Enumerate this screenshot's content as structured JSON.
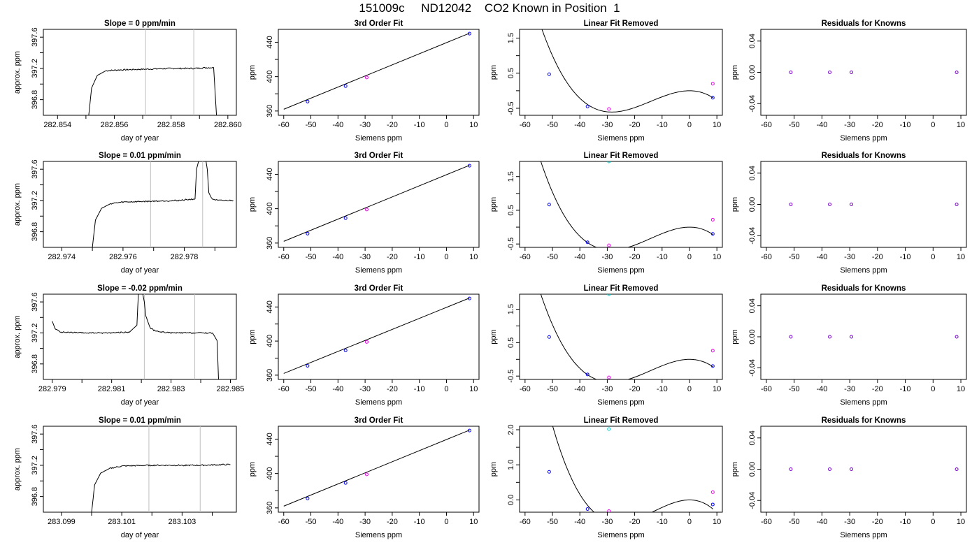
{
  "figure": {
    "title": "151009c     ND12042    CO2 Known in Position  1"
  },
  "colors": {
    "line": "#000000",
    "vline": "#bebebe",
    "point_known": "#0000ff",
    "point_magenta": "#ee00ee",
    "point_cyan": "#00cccc",
    "point_purple": "#7a00cc"
  },
  "chart_data": [
    {
      "type": "line",
      "panel": "time-series",
      "row": 1,
      "title": "Slope =  0  ppm/min",
      "xlabel": "day of year",
      "ylabel": "approx. ppm",
      "xlim": [
        282.8535,
        282.8603
      ],
      "ylim": [
        396.6,
        397.7
      ],
      "xticks": [
        282.854,
        282.855,
        282.856,
        282.857,
        282.858,
        282.859,
        282.86
      ],
      "xtick_labels": [
        "282.854",
        "",
        "282.856",
        "",
        "282.858",
        "",
        "282.860"
      ],
      "yticks": [
        396.8,
        397.0,
        397.2,
        397.4,
        397.6
      ],
      "ytick_labels": [
        "396.8",
        "",
        "397.2",
        "",
        "397.6"
      ],
      "vlines": [
        282.8571,
        282.8588
      ],
      "x": [
        282.8551,
        282.8552,
        282.8554,
        282.8557,
        282.8561,
        282.8571,
        282.858,
        282.8588,
        282.8593,
        282.8595,
        282.8596
      ],
      "y": [
        396.6,
        396.95,
        397.11,
        397.17,
        397.18,
        397.19,
        397.2,
        397.2,
        397.21,
        397.21,
        396.6
      ],
      "noise": 0.008
    },
    {
      "type": "scatter",
      "panel": "third-order-fit",
      "row": 1,
      "title": "3rd Order Fit",
      "xlabel": "Siemens ppm",
      "ylabel": "ppm",
      "xlim": [
        -62,
        12
      ],
      "ylim": [
        355,
        455
      ],
      "xticks": [
        -60,
        -50,
        -40,
        -30,
        -20,
        -10,
        0,
        10
      ],
      "yticks": [
        360,
        380,
        400,
        420,
        440
      ],
      "ytick_labels": [
        "360",
        "",
        "400",
        "",
        "440"
      ],
      "fit_line": {
        "x": [
          -60,
          8.5
        ],
        "y": [
          362,
          450.5
        ]
      },
      "points": [
        {
          "x": -51.2,
          "y": 371,
          "color": "point_known"
        },
        {
          "x": -37.2,
          "y": 389,
          "color": "point_known"
        },
        {
          "x": -29.4,
          "y": 399,
          "color": "point_magenta"
        },
        {
          "x": 8.5,
          "y": 450,
          "color": "point_known"
        }
      ]
    },
    {
      "type": "scatter",
      "panel": "linear-fit-removed",
      "row": 1,
      "title": "Linear Fit Removed",
      "xlabel": "Siemens ppm",
      "ylabel": "ppm",
      "xlim": [
        -62,
        12
      ],
      "ylim": [
        -0.7,
        1.75
      ],
      "xticks": [
        -60,
        -50,
        -40,
        -30,
        -20,
        -10,
        0,
        10
      ],
      "yticks": [
        -0.5,
        0.0,
        0.5,
        1.0,
        1.5
      ],
      "ytick_labels": [
        "-0.5",
        "",
        "0.5",
        "",
        "1.5"
      ],
      "curve": {
        "x_range": [
          -60,
          8.6
        ],
        "coeff": [
          0,
          0,
          -0.00227,
          -5.34e-05
        ]
      },
      "points": [
        {
          "x": -51.2,
          "y": 0.47,
          "color": "point_known"
        },
        {
          "x": -37.2,
          "y": -0.45,
          "color": "point_known"
        },
        {
          "x": -29.4,
          "y": -0.52,
          "color": "point_magenta"
        },
        {
          "x": 8.5,
          "y": -0.2,
          "color": "point_known"
        },
        {
          "x": 8.5,
          "y": 0.2,
          "color": "point_magenta"
        }
      ]
    },
    {
      "type": "scatter",
      "panel": "residuals",
      "row": 1,
      "title": "Residuals for Knowns",
      "xlabel": "Siemens ppm",
      "ylabel": "ppm",
      "xlim": [
        -62,
        12
      ],
      "ylim": [
        -0.055,
        0.055
      ],
      "xticks": [
        -60,
        -50,
        -40,
        -30,
        -20,
        -10,
        0,
        10
      ],
      "yticks": [
        -0.04,
        0.0,
        0.04
      ],
      "ytick_labels": [
        "-0.04",
        "0.00",
        "0.04"
      ],
      "points": [
        {
          "x": -51.2,
          "y": 0,
          "color": "point_purple"
        },
        {
          "x": -37.2,
          "y": 0,
          "color": "point_purple"
        },
        {
          "x": -29.4,
          "y": 0,
          "color": "point_purple"
        },
        {
          "x": 8.5,
          "y": 0,
          "color": "point_purple"
        }
      ]
    },
    {
      "type": "line",
      "panel": "time-series",
      "row": 2,
      "title": "Slope =  0.01  ppm/min",
      "xlabel": "day of year",
      "ylabel": "approx. ppm",
      "xlim": [
        282.9734,
        282.9797
      ],
      "ylim": [
        396.6,
        397.7
      ],
      "xticks": [
        282.974,
        282.975,
        282.976,
        282.977,
        282.978,
        282.979
      ],
      "xtick_labels": [
        "282.974",
        "",
        "282.976",
        "",
        "282.978",
        ""
      ],
      "yticks": [
        396.8,
        397.0,
        397.2,
        397.4,
        397.6
      ],
      "ytick_labels": [
        "396.8",
        "",
        "397.2",
        "",
        "397.6"
      ],
      "vlines": [
        282.9769,
        282.9786
      ],
      "x": [
        282.975,
        282.9751,
        282.9753,
        282.9756,
        282.976,
        282.9769,
        282.9778,
        282.97835,
        282.9784,
        282.9785,
        282.97865,
        282.97875,
        282.9788,
        282.9789,
        282.9791,
        282.9796
      ],
      "y": [
        396.6,
        396.95,
        397.1,
        397.16,
        397.18,
        397.19,
        397.2,
        397.22,
        397.6,
        397.75,
        397.85,
        397.6,
        397.3,
        397.22,
        397.2,
        397.2
      ],
      "noise": 0.008
    },
    {
      "type": "scatter",
      "panel": "third-order-fit",
      "row": 2,
      "title": "3rd Order Fit",
      "xlabel": "Siemens ppm",
      "ylabel": "ppm",
      "xlim": [
        -62,
        12
      ],
      "ylim": [
        355,
        455
      ],
      "xticks": [
        -60,
        -50,
        -40,
        -30,
        -20,
        -10,
        0,
        10
      ],
      "yticks": [
        360,
        380,
        400,
        420,
        440
      ],
      "ytick_labels": [
        "360",
        "",
        "400",
        "",
        "440"
      ],
      "fit_line": {
        "x": [
          -60,
          8.5
        ],
        "y": [
          362,
          450.5
        ]
      },
      "points": [
        {
          "x": -51.2,
          "y": 371,
          "color": "point_known"
        },
        {
          "x": -37.2,
          "y": 389,
          "color": "point_known"
        },
        {
          "x": -29.4,
          "y": 399,
          "color": "point_magenta"
        },
        {
          "x": 8.5,
          "y": 450,
          "color": "point_known"
        }
      ]
    },
    {
      "type": "scatter",
      "panel": "linear-fit-removed",
      "row": 2,
      "title": "Linear Fit Removed",
      "xlabel": "Siemens ppm",
      "ylabel": "ppm",
      "xlim": [
        -62,
        12
      ],
      "ylim": [
        -0.6,
        1.95
      ],
      "xticks": [
        -60,
        -50,
        -40,
        -30,
        -20,
        -10,
        0,
        10
      ],
      "yticks": [
        -0.5,
        0.0,
        0.5,
        1.0,
        1.5
      ],
      "ytick_labels": [
        "-0.5",
        "",
        "0.5",
        "",
        "1.5"
      ],
      "curve": {
        "x_range": [
          -60,
          8.6
        ],
        "coeff": [
          0,
          0,
          -0.0025,
          -5.83e-05
        ]
      },
      "points": [
        {
          "x": -51.2,
          "y": 0.67,
          "color": "point_known"
        },
        {
          "x": -37.2,
          "y": -0.45,
          "color": "point_known"
        },
        {
          "x": -29.4,
          "y": -0.54,
          "color": "point_magenta"
        },
        {
          "x": 8.5,
          "y": -0.2,
          "color": "point_known"
        },
        {
          "x": 8.5,
          "y": 0.22,
          "color": "point_magenta"
        },
        {
          "x": -29.4,
          "y": 1.95,
          "color": "point_cyan"
        }
      ]
    },
    {
      "type": "scatter",
      "panel": "residuals",
      "row": 2,
      "title": "Residuals for Knowns",
      "xlabel": "Siemens ppm",
      "ylabel": "ppm",
      "xlim": [
        -62,
        12
      ],
      "ylim": [
        -0.055,
        0.055
      ],
      "xticks": [
        -60,
        -50,
        -40,
        -30,
        -20,
        -10,
        0,
        10
      ],
      "yticks": [
        -0.04,
        0.0,
        0.04
      ],
      "ytick_labels": [
        "-0.04",
        "0.00",
        "0.04"
      ],
      "points": [
        {
          "x": -51.2,
          "y": 0,
          "color": "point_purple"
        },
        {
          "x": -37.2,
          "y": 0,
          "color": "point_purple"
        },
        {
          "x": -29.4,
          "y": 0,
          "color": "point_purple"
        },
        {
          "x": 8.5,
          "y": 0,
          "color": "point_purple"
        }
      ]
    },
    {
      "type": "line",
      "panel": "time-series",
      "row": 3,
      "title": "Slope =  -0.02  ppm/min",
      "xlabel": "day of year",
      "ylabel": "approx. ppm",
      "xlim": [
        282.9787,
        282.9852
      ],
      "ylim": [
        396.6,
        397.7
      ],
      "xticks": [
        282.979,
        282.98,
        282.981,
        282.982,
        282.983,
        282.984,
        282.985
      ],
      "xtick_labels": [
        "282.979",
        "",
        "282.981",
        "",
        "282.983",
        "",
        "282.985"
      ],
      "yticks": [
        396.8,
        397.0,
        397.2,
        397.4,
        397.6
      ],
      "ytick_labels": [
        "396.8",
        "",
        "397.2",
        "",
        "397.6"
      ],
      "vlines": [
        282.9821,
        282.9838
      ],
      "x": [
        282.979,
        282.9791,
        282.9793,
        282.98,
        282.9808,
        282.9816,
        282.98185,
        282.9819,
        282.982,
        282.9821,
        282.98215,
        282.9823,
        282.9825,
        282.983,
        282.9838,
        282.9844,
        282.98455,
        282.9846
      ],
      "y": [
        397.35,
        397.25,
        397.21,
        397.2,
        397.2,
        397.21,
        397.3,
        397.7,
        397.8,
        397.6,
        397.42,
        397.26,
        397.22,
        397.2,
        397.2,
        397.2,
        397.1,
        396.6
      ],
      "noise": 0.008
    },
    {
      "type": "scatter",
      "panel": "third-order-fit",
      "row": 3,
      "title": "3rd Order Fit",
      "xlabel": "Siemens ppm",
      "ylabel": "ppm",
      "xlim": [
        -62,
        12
      ],
      "ylim": [
        355,
        455
      ],
      "xticks": [
        -60,
        -50,
        -40,
        -30,
        -20,
        -10,
        0,
        10
      ],
      "yticks": [
        360,
        380,
        400,
        420,
        440
      ],
      "ytick_labels": [
        "360",
        "",
        "400",
        "",
        "440"
      ],
      "fit_line": {
        "x": [
          -60,
          8.5
        ],
        "y": [
          362,
          450.5
        ]
      },
      "points": [
        {
          "x": -51.2,
          "y": 371,
          "color": "point_known"
        },
        {
          "x": -37.2,
          "y": 389,
          "color": "point_known"
        },
        {
          "x": -29.4,
          "y": 399,
          "color": "point_magenta"
        },
        {
          "x": 8.5,
          "y": 450,
          "color": "point_known"
        }
      ]
    },
    {
      "type": "scatter",
      "panel": "linear-fit-removed",
      "row": 3,
      "title": "Linear Fit Removed",
      "xlabel": "Siemens ppm",
      "ylabel": "ppm",
      "xlim": [
        -62,
        12
      ],
      "ylim": [
        -0.6,
        1.95
      ],
      "xticks": [
        -60,
        -50,
        -40,
        -30,
        -20,
        -10,
        0,
        10
      ],
      "yticks": [
        -0.5,
        0.0,
        0.5,
        1.0,
        1.5
      ],
      "ytick_labels": [
        "-0.5",
        "",
        "0.5",
        "",
        "1.5"
      ],
      "curve": {
        "x_range": [
          -60,
          8.6
        ],
        "coeff": [
          0,
          0,
          -0.0025,
          -5.83e-05
        ]
      },
      "points": [
        {
          "x": -51.2,
          "y": 0.67,
          "color": "point_known"
        },
        {
          "x": -37.2,
          "y": -0.45,
          "color": "point_known"
        },
        {
          "x": -29.4,
          "y": -0.54,
          "color": "point_magenta"
        },
        {
          "x": 8.5,
          "y": -0.2,
          "color": "point_known"
        },
        {
          "x": 8.5,
          "y": 0.26,
          "color": "point_magenta"
        },
        {
          "x": -29.4,
          "y": 1.95,
          "color": "point_cyan"
        }
      ]
    },
    {
      "type": "scatter",
      "panel": "residuals",
      "row": 3,
      "title": "Residuals for Knowns",
      "xlabel": "Siemens ppm",
      "ylabel": "ppm",
      "xlim": [
        -62,
        12
      ],
      "ylim": [
        -0.055,
        0.055
      ],
      "xticks": [
        -60,
        -50,
        -40,
        -30,
        -20,
        -10,
        0,
        10
      ],
      "yticks": [
        -0.04,
        0.0,
        0.04
      ],
      "ytick_labels": [
        "-0.04",
        "0.00",
        "0.04"
      ],
      "points": [
        {
          "x": -51.2,
          "y": 0,
          "color": "point_purple"
        },
        {
          "x": -37.2,
          "y": 0,
          "color": "point_purple"
        },
        {
          "x": -29.4,
          "y": 0,
          "color": "point_purple"
        },
        {
          "x": 8.5,
          "y": 0,
          "color": "point_purple"
        }
      ]
    },
    {
      "type": "line",
      "panel": "time-series",
      "row": 4,
      "title": "Slope =  0.01  ppm/min",
      "xlabel": "day of year",
      "ylabel": "approx. ppm",
      "xlim": [
        283.0984,
        283.1048
      ],
      "ylim": [
        396.6,
        397.7
      ],
      "xticks": [
        283.099,
        283.1,
        283.101,
        283.102,
        283.103,
        283.104
      ],
      "xtick_labels": [
        "283.099",
        "",
        "283.101",
        "",
        "283.103",
        ""
      ],
      "yticks": [
        396.8,
        397.0,
        397.2,
        397.4,
        397.6
      ],
      "ytick_labels": [
        "396.8",
        "",
        "397.2",
        "",
        "397.6"
      ],
      "vlines": [
        283.1019,
        283.1036
      ],
      "x": [
        283.1,
        283.1001,
        283.1003,
        283.1006,
        283.101,
        283.1019,
        283.1028,
        283.1036,
        283.1046
      ],
      "y": [
        396.6,
        396.95,
        397.1,
        397.16,
        397.19,
        397.2,
        397.2,
        397.2,
        397.21
      ],
      "noise": 0.008
    },
    {
      "type": "scatter",
      "panel": "third-order-fit",
      "row": 4,
      "title": "3rd Order Fit",
      "xlabel": "Siemens ppm",
      "ylabel": "ppm",
      "xlim": [
        -62,
        12
      ],
      "ylim": [
        355,
        455
      ],
      "xticks": [
        -60,
        -50,
        -40,
        -30,
        -20,
        -10,
        0,
        10
      ],
      "yticks": [
        360,
        380,
        400,
        420,
        440
      ],
      "ytick_labels": [
        "360",
        "",
        "400",
        "",
        "440"
      ],
      "fit_line": {
        "x": [
          -60,
          8.5
        ],
        "y": [
          362,
          450.5
        ]
      },
      "points": [
        {
          "x": -51.2,
          "y": 371,
          "color": "point_known"
        },
        {
          "x": -37.2,
          "y": 389,
          "color": "point_known"
        },
        {
          "x": -29.4,
          "y": 399,
          "color": "point_magenta"
        },
        {
          "x": 8.5,
          "y": 450,
          "color": "point_known"
        }
      ]
    },
    {
      "type": "scatter",
      "panel": "linear-fit-removed",
      "row": 4,
      "title": "Linear Fit Removed",
      "xlabel": "Siemens ppm",
      "ylabel": "ppm",
      "xlim": [
        -62,
        12
      ],
      "ylim": [
        -0.35,
        2.1
      ],
      "xticks": [
        -60,
        -50,
        -40,
        -30,
        -20,
        -10,
        0,
        10
      ],
      "yticks": [
        0.0,
        0.5,
        1.0,
        1.5,
        2.0
      ],
      "ytick_labels": [
        "0.0",
        "",
        "1.0",
        "",
        "2.0"
      ],
      "curve": {
        "x_range": [
          -60,
          8.6
        ],
        "coeff": [
          0,
          0,
          -0.0029,
          -7.5e-05
        ]
      },
      "points": [
        {
          "x": -51.2,
          "y": 0.8,
          "color": "point_known"
        },
        {
          "x": -37.2,
          "y": -0.26,
          "color": "point_known"
        },
        {
          "x": -29.4,
          "y": -0.32,
          "color": "point_magenta"
        },
        {
          "x": 8.5,
          "y": -0.13,
          "color": "point_known"
        },
        {
          "x": 8.5,
          "y": 0.22,
          "color": "point_magenta"
        },
        {
          "x": -29.4,
          "y": 2.02,
          "color": "point_cyan"
        }
      ]
    },
    {
      "type": "scatter",
      "panel": "residuals",
      "row": 4,
      "title": "Residuals for Knowns",
      "xlabel": "Siemens ppm",
      "ylabel": "ppm",
      "xlim": [
        -62,
        12
      ],
      "ylim": [
        -0.055,
        0.055
      ],
      "xticks": [
        -60,
        -50,
        -40,
        -30,
        -20,
        -10,
        0,
        10
      ],
      "yticks": [
        -0.04,
        0.0,
        0.04
      ],
      "ytick_labels": [
        "-0.04",
        "0.00",
        "0.04"
      ],
      "points": [
        {
          "x": -51.2,
          "y": 0,
          "color": "point_purple"
        },
        {
          "x": -37.2,
          "y": 0,
          "color": "point_purple"
        },
        {
          "x": -29.4,
          "y": 0,
          "color": "point_purple"
        },
        {
          "x": 8.5,
          "y": 0,
          "color": "point_purple"
        }
      ]
    }
  ]
}
